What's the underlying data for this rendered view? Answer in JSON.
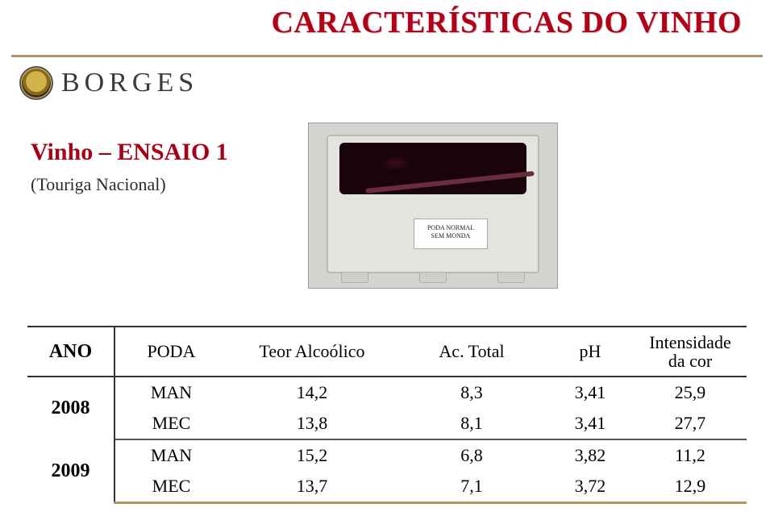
{
  "title": "CARACTERÍSTICAS DO VINHO",
  "brand": {
    "name": "BORGES"
  },
  "section": {
    "heading": "Vinho – ENSAIO 1",
    "sub": "(Touriga Nacional)"
  },
  "photo_label": {
    "line1": "PODA NORMAL",
    "line2": "SEM MONDA"
  },
  "table": {
    "columns": {
      "ano": "ANO",
      "poda": "PODA",
      "teor": "Teor Alcoólico",
      "actotal": "Ac. Total",
      "ph": "pH",
      "intensidade_l1": "Intensidade",
      "intensidade_l2": "da cor"
    },
    "years": [
      {
        "ano": "2008",
        "rows": [
          {
            "poda": "MAN",
            "teor": "14,2",
            "actotal": "8,3",
            "ph": "3,41",
            "int": "25,9"
          },
          {
            "poda": "MEC",
            "teor": "13,8",
            "actotal": "8,1",
            "ph": "3,41",
            "int": "27,7"
          }
        ]
      },
      {
        "ano": "2009",
        "rows": [
          {
            "poda": "MAN",
            "teor": "15,2",
            "actotal": "6,8",
            "ph": "3,82",
            "int": "11,2"
          },
          {
            "poda": "MEC",
            "teor": "13,7",
            "actotal": "7,1",
            "ph": "3,72",
            "int": "12,9"
          }
        ]
      }
    ]
  },
  "style": {
    "title_color": "#b40017",
    "title_fontsize": 38,
    "accent_line_color": "#b4955f",
    "heading_color": "#a50016",
    "table_border_color": "#333333",
    "table_font": "Times New Roman",
    "body_fontsize": 22,
    "year_fontsize": 24,
    "photo_w": 310,
    "photo_h": 206,
    "slide_bg": "#ffffff"
  }
}
